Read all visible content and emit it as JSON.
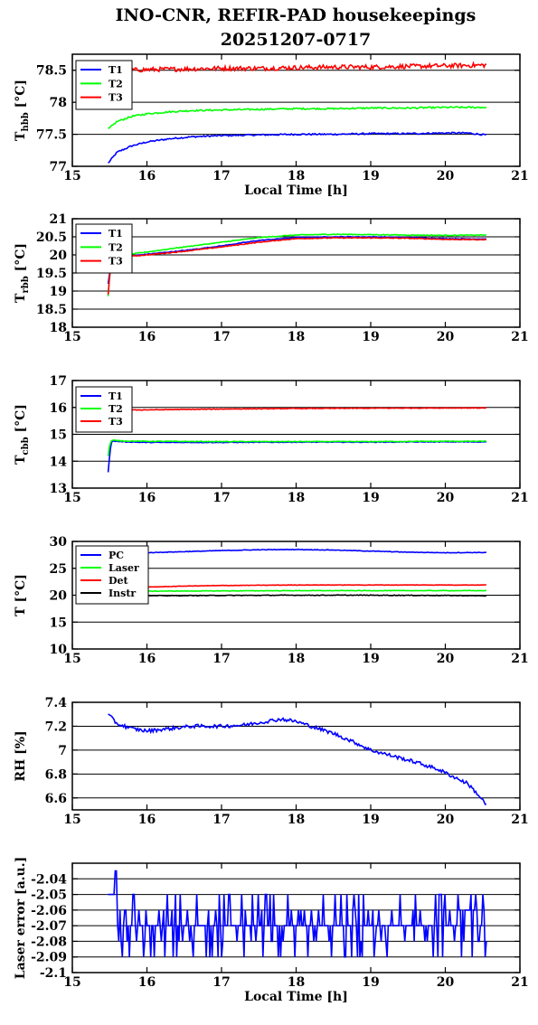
{
  "figure": {
    "title_line1": "INO-CNR, REFIR-PAD housekeepings",
    "title_line2": "20251207-0717"
  },
  "colors": {
    "blue": "#0000ff",
    "green": "#00ff00",
    "red": "#ff0000",
    "black": "#000000"
  },
  "chart_data": [
    {
      "type": "line",
      "ylabel": "T",
      "ylabel_sub": "hbb",
      "ylabel_unit": "[°C]",
      "xlabel": "Local Time [h]",
      "xlim": [
        15,
        21
      ],
      "ylim": [
        77,
        78.75
      ],
      "xticks": [
        "15",
        "16",
        "17",
        "18",
        "19",
        "20",
        "21"
      ],
      "yticks": [
        "77",
        "77.5",
        "78",
        "78.5"
      ],
      "ytick_values": [
        77,
        77.5,
        78,
        78.5
      ],
      "hgrid": [
        77.5,
        78,
        78.5
      ],
      "legend": "top-left",
      "series": [
        {
          "name": "T1",
          "color": "blue",
          "x": [
            15.48,
            15.6,
            15.8,
            16,
            16.3,
            16.6,
            17,
            17.5,
            18,
            18.5,
            19,
            19.5,
            20,
            20.3,
            20.55
          ],
          "y": [
            77.05,
            77.22,
            77.32,
            77.38,
            77.43,
            77.46,
            77.48,
            77.49,
            77.5,
            77.5,
            77.51,
            77.51,
            77.52,
            77.52,
            77.49
          ],
          "noise": 0.012
        },
        {
          "name": "T2",
          "color": "green",
          "x": [
            15.48,
            15.6,
            15.8,
            16,
            16.3,
            16.6,
            17,
            17.5,
            18,
            18.5,
            19,
            19.5,
            20,
            20.3,
            20.55
          ],
          "y": [
            77.58,
            77.7,
            77.78,
            77.82,
            77.85,
            77.87,
            77.88,
            77.89,
            77.9,
            77.9,
            77.91,
            77.91,
            77.92,
            77.92,
            77.92
          ],
          "noise": 0.012
        },
        {
          "name": "T3",
          "color": "red",
          "x": [
            15.48,
            15.7,
            16,
            16.5,
            17,
            17.5,
            18,
            18.5,
            19,
            19.5,
            20,
            20.55
          ],
          "y": [
            78.55,
            78.5,
            78.51,
            78.52,
            78.53,
            78.53,
            78.54,
            78.55,
            78.55,
            78.56,
            78.57,
            78.58
          ],
          "noise": 0.035
        }
      ]
    },
    {
      "type": "line",
      "ylabel": "T",
      "ylabel_sub": "rbb",
      "ylabel_unit": "[°C]",
      "xlabel": "",
      "xlim": [
        15,
        21
      ],
      "ylim": [
        18,
        21
      ],
      "xticks": [
        "15",
        "16",
        "17",
        "18",
        "19",
        "20",
        "21"
      ],
      "yticks": [
        "18",
        "18.5",
        "19",
        "19.5",
        "20",
        "20.5",
        "21"
      ],
      "ytick_values": [
        18,
        18.5,
        19,
        19.5,
        20,
        20.5,
        21
      ],
      "hgrid": [
        18,
        18.5,
        19,
        19.5,
        20,
        20.5,
        21
      ],
      "legend": "top-left",
      "series": [
        {
          "name": "T1",
          "color": "blue",
          "x": [
            15.48,
            15.52,
            15.55,
            15.7,
            16,
            16.5,
            17,
            17.5,
            18,
            18.5,
            19,
            19.5,
            20,
            20.55
          ],
          "y": [
            19.2,
            19.8,
            19.9,
            19.95,
            20.02,
            20.12,
            20.25,
            20.4,
            20.48,
            20.5,
            20.5,
            20.48,
            20.45,
            20.44
          ],
          "noise": 0.01
        },
        {
          "name": "T2",
          "color": "green",
          "x": [
            15.48,
            15.5,
            15.52,
            15.55,
            15.7,
            16,
            16.5,
            17,
            17.5,
            18,
            18.5,
            19,
            19.5,
            20,
            20.55
          ],
          "y": [
            18.85,
            19.4,
            19.85,
            19.95,
            20.0,
            20.08,
            20.22,
            20.35,
            20.48,
            20.55,
            20.57,
            20.56,
            20.55,
            20.54,
            20.55
          ],
          "noise": 0.01
        },
        {
          "name": "T3",
          "color": "red",
          "x": [
            15.48,
            15.5,
            15.52,
            15.55,
            15.7,
            16,
            16.5,
            17,
            17.5,
            18,
            18.5,
            19,
            19.5,
            20,
            20.55
          ],
          "y": [
            18.9,
            19.4,
            19.8,
            19.9,
            19.95,
            20.0,
            20.1,
            20.22,
            20.35,
            20.45,
            20.47,
            20.47,
            20.46,
            20.43,
            20.42
          ],
          "noise": 0.01
        }
      ]
    },
    {
      "type": "line",
      "ylabel": "T",
      "ylabel_sub": "cbb",
      "ylabel_unit": "[°C]",
      "xlabel": "",
      "xlim": [
        15,
        21
      ],
      "ylim": [
        13,
        17
      ],
      "xticks": [
        "15",
        "16",
        "17",
        "18",
        "19",
        "20",
        "21"
      ],
      "yticks": [
        "13",
        "14",
        "15",
        "16",
        "17"
      ],
      "ytick_values": [
        13,
        14,
        15,
        16,
        17
      ],
      "hgrid": [
        14,
        15,
        16
      ],
      "legend": "top-left",
      "series": [
        {
          "name": "T1",
          "color": "blue",
          "x": [
            15.48,
            15.5,
            15.52,
            15.55,
            15.7,
            16,
            17,
            18,
            19,
            20,
            20.55
          ],
          "y": [
            13.6,
            14.2,
            14.7,
            14.75,
            14.72,
            14.7,
            14.7,
            14.71,
            14.71,
            14.72,
            14.72
          ],
          "noise": 0.012
        },
        {
          "name": "T2",
          "color": "green",
          "x": [
            15.48,
            15.5,
            15.52,
            15.55,
            15.7,
            16,
            17,
            18,
            19,
            20,
            20.55
          ],
          "y": [
            14.2,
            14.6,
            14.75,
            14.78,
            14.75,
            14.74,
            14.73,
            14.73,
            14.73,
            14.74,
            14.74
          ],
          "noise": 0.012
        },
        {
          "name": "T3",
          "color": "red",
          "x": [
            15.48,
            15.7,
            16,
            17,
            18,
            19,
            20,
            20.55
          ],
          "y": [
            15.92,
            15.9,
            15.91,
            15.94,
            15.96,
            15.97,
            15.98,
            15.98
          ],
          "noise": 0.012
        }
      ]
    },
    {
      "type": "line",
      "ylabel": "T [°C]",
      "ylabel_sub": "",
      "ylabel_unit": "",
      "xlabel": "",
      "xlim": [
        15,
        21
      ],
      "ylim": [
        10,
        30
      ],
      "xticks": [
        "15",
        "16",
        "17",
        "18",
        "19",
        "20",
        "21"
      ],
      "yticks": [
        "10",
        "15",
        "20",
        "25",
        "30"
      ],
      "ytick_values": [
        10,
        15,
        20,
        25,
        30
      ],
      "hgrid": [
        15,
        20,
        25
      ],
      "legend": "top-left",
      "series": [
        {
          "name": "PC",
          "color": "blue",
          "x": [
            15.48,
            16,
            16.5,
            17,
            17.5,
            18,
            18.5,
            19,
            19.5,
            20,
            20.55
          ],
          "y": [
            27.7,
            27.9,
            28.1,
            28.3,
            28.45,
            28.5,
            28.4,
            28.2,
            28.0,
            27.9,
            27.95
          ],
          "noise": 0.05
        },
        {
          "name": "Laser",
          "color": "green",
          "x": [
            15.48,
            16,
            17,
            18,
            19,
            20,
            20.55
          ],
          "y": [
            20.7,
            20.75,
            20.8,
            20.85,
            20.85,
            20.85,
            20.85
          ],
          "noise": 0.05
        },
        {
          "name": "Det",
          "color": "red",
          "x": [
            15.48,
            15.8,
            16,
            16.5,
            17,
            18,
            19,
            20,
            20.55
          ],
          "y": [
            21.0,
            21.2,
            21.5,
            21.7,
            21.8,
            21.9,
            21.9,
            21.9,
            21.9
          ],
          "noise": 0.04
        },
        {
          "name": "Instr",
          "color": "black",
          "x": [
            15.48,
            16,
            17,
            18,
            19,
            20,
            20.55
          ],
          "y": [
            19.8,
            19.9,
            19.95,
            20.0,
            20.0,
            19.95,
            19.9
          ],
          "noise": 0.06
        }
      ]
    },
    {
      "type": "line",
      "ylabel": "RH [%]",
      "ylabel_sub": "",
      "ylabel_unit": "",
      "xlabel": "",
      "xlim": [
        15,
        21
      ],
      "ylim": [
        6.5,
        7.4
      ],
      "xticks": [
        "15",
        "16",
        "17",
        "18",
        "19",
        "20",
        "21"
      ],
      "yticks": [
        "6.6",
        "6.8",
        "7",
        "7.2",
        "7.4"
      ],
      "ytick_values": [
        6.6,
        6.8,
        7.0,
        7.2,
        7.4
      ],
      "hgrid": [
        6.6,
        6.8,
        7.0,
        7.2
      ],
      "legend": "none",
      "series": [
        {
          "name": "",
          "color": "blue",
          "x": [
            15.48,
            15.6,
            15.8,
            16,
            16.3,
            16.6,
            17,
            17.3,
            17.6,
            17.8,
            18,
            18.2,
            18.5,
            18.8,
            19,
            19.3,
            19.6,
            19.9,
            20.1,
            20.3,
            20.45,
            20.55
          ],
          "y": [
            7.3,
            7.22,
            7.18,
            7.16,
            7.18,
            7.2,
            7.2,
            7.21,
            7.24,
            7.26,
            7.24,
            7.2,
            7.14,
            7.06,
            7.0,
            6.95,
            6.9,
            6.84,
            6.78,
            6.72,
            6.62,
            6.54
          ],
          "noise": 0.015
        }
      ]
    },
    {
      "type": "line",
      "ylabel": "Laser error [a.u.]",
      "ylabel_sub": "",
      "ylabel_unit": "",
      "xlabel": "Local Time [h]",
      "xlim": [
        15,
        21
      ],
      "ylim": [
        -2.1,
        -2.03
      ],
      "xticks": [
        "15",
        "16",
        "17",
        "18",
        "19",
        "20",
        "21"
      ],
      "yticks": [
        "-2.1",
        "-2.09",
        "-2.08",
        "-2.07",
        "-2.06",
        "-2.05",
        "-2.04"
      ],
      "ytick_values": [
        -2.1,
        -2.09,
        -2.08,
        -2.07,
        -2.06,
        -2.05,
        -2.04
      ],
      "hgrid": [
        -2.09,
        -2.08,
        -2.07,
        -2.06,
        -2.05,
        -2.04
      ],
      "legend": "none",
      "series": [
        {
          "name": "",
          "color": "blue",
          "x": [
            15.48,
            15.55,
            15.58,
            15.6,
            15.62,
            15.65,
            15.7,
            15.8,
            16,
            16.5,
            17,
            17.5,
            18,
            18.5,
            19,
            19.5,
            20,
            20.3,
            20.55
          ],
          "y": [
            -2.05,
            -2.05,
            -2.035,
            -2.05,
            -2.06,
            -2.07,
            -2.065,
            -2.068,
            -2.07,
            -2.07,
            -2.068,
            -2.067,
            -2.068,
            -2.069,
            -2.069,
            -2.068,
            -2.067,
            -2.063,
            -2.065
          ],
          "noise": 0.0,
          "stepped": true
        }
      ]
    }
  ]
}
